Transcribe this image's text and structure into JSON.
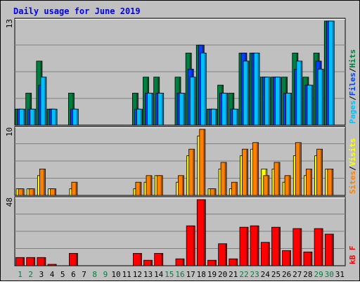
{
  "title": "Daily usage for June 2019",
  "colors": {
    "background": "#c0c0c0",
    "title": "#0000ff",
    "hits": "#008040",
    "files": "#0040ff",
    "pages": "#00c0ff",
    "visits": "#ffff00",
    "sites": "#ff8000",
    "kbytes": "#ff0000",
    "weekend_label": "#008040",
    "weekday_label": "#000000",
    "legend_separator": "#000000"
  },
  "chart_data": [
    {
      "type": "bar",
      "panel": "hits",
      "ymax_label": "13",
      "ymax": 13,
      "grid": true,
      "legend": [
        "Pages",
        "Files",
        "Hits"
      ],
      "legend_separator": "/",
      "categories": [
        "1",
        "2",
        "3",
        "4",
        "5",
        "6",
        "7",
        "8",
        "9",
        "10",
        "11",
        "12",
        "13",
        "14",
        "15",
        "16",
        "17",
        "18",
        "19",
        "20",
        "21",
        "22",
        "23",
        "24",
        "25",
        "26",
        "27",
        "28",
        "29",
        "30",
        "31"
      ],
      "series": [
        {
          "name": "Hits",
          "values": [
            2,
            4,
            8,
            2,
            0,
            4,
            0,
            0,
            0,
            0,
            0,
            4,
            6,
            6,
            0,
            6,
            9,
            10,
            2,
            5,
            4,
            9,
            9,
            6,
            6,
            6,
            9,
            6,
            9,
            13,
            0
          ]
        },
        {
          "name": "Files",
          "values": [
            2,
            2,
            5,
            2,
            0,
            2,
            0,
            0,
            0,
            0,
            0,
            2,
            4,
            4,
            0,
            4,
            7,
            10,
            2,
            4,
            2,
            9,
            9,
            6,
            6,
            4,
            7,
            5,
            8,
            13,
            0
          ]
        },
        {
          "name": "Pages",
          "values": [
            2,
            2,
            6,
            2,
            0,
            2,
            0,
            0,
            0,
            0,
            0,
            2,
            4,
            4,
            0,
            4,
            6,
            9,
            2,
            4,
            2,
            8,
            9,
            6,
            6,
            4,
            8,
            5,
            7,
            13,
            0
          ]
        }
      ]
    },
    {
      "type": "bar",
      "panel": "visits",
      "ymax_label": "10",
      "ymax": 10,
      "grid": true,
      "legend": [
        "Sites",
        "Visits"
      ],
      "legend_separator": "/",
      "categories": [
        "1",
        "2",
        "3",
        "4",
        "5",
        "6",
        "7",
        "8",
        "9",
        "10",
        "11",
        "12",
        "13",
        "14",
        "15",
        "16",
        "17",
        "18",
        "19",
        "20",
        "21",
        "22",
        "23",
        "24",
        "25",
        "26",
        "27",
        "28",
        "29",
        "30",
        "31"
      ],
      "series": [
        {
          "name": "Visits",
          "values": [
            1,
            1,
            3,
            1,
            0,
            1,
            0,
            0,
            0,
            0,
            0,
            1,
            2,
            3,
            0,
            2,
            6,
            9,
            1,
            4,
            1,
            6,
            7,
            4,
            4,
            2,
            6,
            3,
            6,
            4,
            0
          ]
        },
        {
          "name": "Sites",
          "values": [
            1,
            1,
            4,
            1,
            0,
            2,
            0,
            0,
            0,
            0,
            0,
            2,
            3,
            3,
            0,
            3,
            7,
            10,
            1,
            5,
            2,
            7,
            8,
            3,
            5,
            3,
            8,
            4,
            7,
            4,
            0
          ]
        }
      ]
    },
    {
      "type": "bar",
      "panel": "kbytes",
      "ymax_label": "48",
      "ymax": 48,
      "grid": true,
      "legend": [
        "kB F"
      ],
      "categories": [
        "1",
        "2",
        "3",
        "4",
        "5",
        "6",
        "7",
        "8",
        "9",
        "10",
        "11",
        "12",
        "13",
        "14",
        "15",
        "16",
        "17",
        "18",
        "19",
        "20",
        "21",
        "22",
        "23",
        "24",
        "25",
        "26",
        "27",
        "28",
        "29",
        "30",
        "31"
      ],
      "series": [
        {
          "name": "kB F",
          "values": [
            6,
            6,
            6,
            1,
            0,
            9,
            0,
            0,
            0,
            0,
            0,
            9,
            4,
            9,
            0,
            5,
            29,
            48,
            4,
            16,
            5,
            28,
            29,
            17,
            28,
            11,
            27,
            10,
            27,
            23,
            0
          ]
        }
      ]
    }
  ],
  "x_labels": [
    "1",
    "2",
    "3",
    "4",
    "5",
    "6",
    "7",
    "8",
    "9",
    "10",
    "11",
    "12",
    "13",
    "14",
    "15",
    "16",
    "17",
    "18",
    "19",
    "20",
    "21",
    "22",
    "23",
    "24",
    "25",
    "26",
    "27",
    "28",
    "29",
    "30",
    "31"
  ],
  "weekend_days": [
    "1",
    "2",
    "8",
    "9",
    "15",
    "16",
    "22",
    "23",
    "29",
    "30"
  ]
}
